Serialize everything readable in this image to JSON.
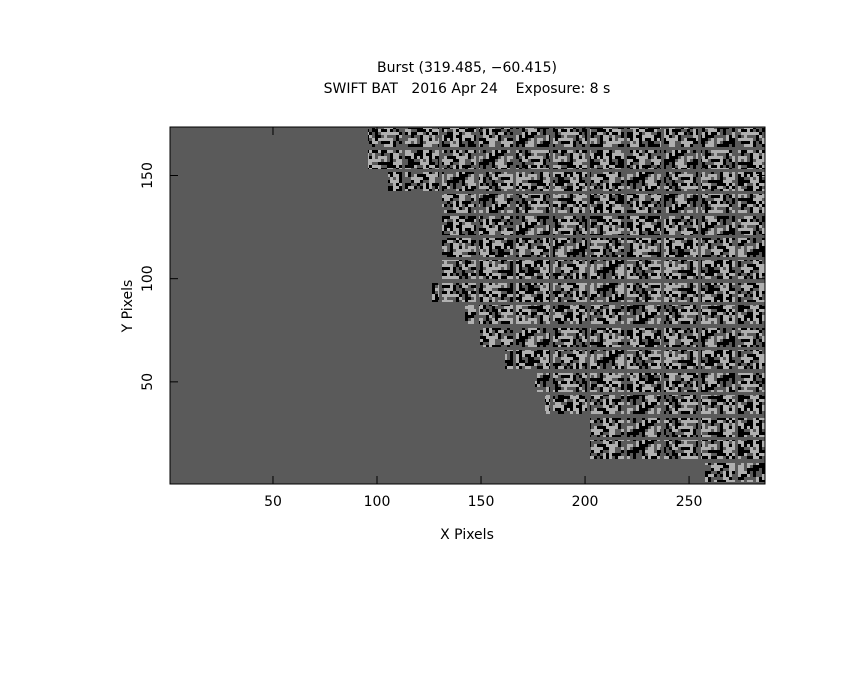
{
  "chart_data": {
    "type": "image",
    "title": "Burst (319.485, −60.415)",
    "subtitle": "SWIFT BAT   2016 Apr 24    Exposure: 8 s",
    "x_label": "X Pixels",
    "y_label": "Y Pixels",
    "xlim": [
      0.5,
      286.5
    ],
    "ylim": [
      0.5,
      173.5
    ],
    "xticks": [
      50,
      100,
      150,
      200,
      250
    ],
    "yticks": [
      50,
      100,
      150
    ],
    "color": "#5a5a5a"
  }
}
